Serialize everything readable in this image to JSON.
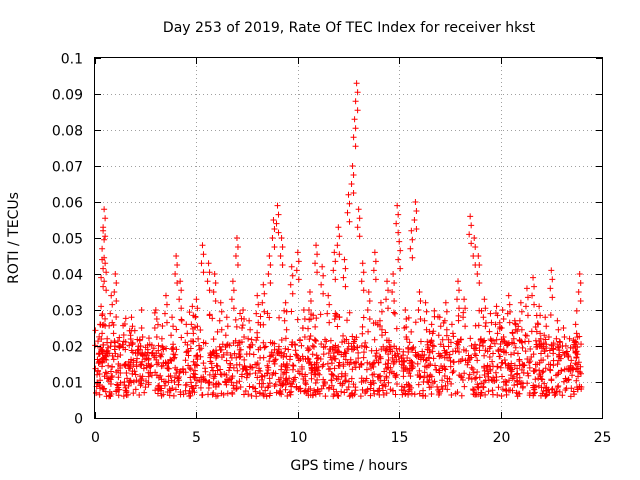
{
  "chart_data": {
    "type": "scatter",
    "title": "Day 253 of 2019, Rate Of TEC Index for receiver hkst",
    "xlabel": "GPS time / hours",
    "ylabel": "ROTI / TECUs",
    "xlim": [
      0,
      25
    ],
    "ylim": [
      0,
      0.1
    ],
    "x_ticks": [
      0,
      5,
      10,
      15,
      20,
      25
    ],
    "x_tick_labels": [
      "0",
      "5",
      "10",
      "15",
      "20",
      "25"
    ],
    "y_ticks": [
      0,
      0.01,
      0.02,
      0.03,
      0.04,
      0.05,
      0.06,
      0.07,
      0.08,
      0.09,
      0.1
    ],
    "y_tick_labels": [
      "0",
      "0.01",
      "0.02",
      "0.03",
      "0.04",
      "0.05",
      "0.06",
      "0.07",
      "0.08",
      "0.09",
      "0.1"
    ],
    "grid": true,
    "marker": "+",
    "marker_color": "#ff0000",
    "series": [
      {
        "name": "ROTI",
        "points": [
          [
            0.1,
            0.012
          ],
          [
            0.2,
            0.018
          ],
          [
            0.3,
            0.031
          ],
          [
            0.35,
            0.044
          ],
          [
            0.4,
            0.052
          ],
          [
            0.45,
            0.058
          ],
          [
            0.5,
            0.043
          ],
          [
            0.6,
            0.022
          ],
          [
            0.8,
            0.034
          ],
          [
            1.0,
            0.04
          ],
          [
            1.2,
            0.02
          ],
          [
            1.5,
            0.015
          ],
          [
            1.8,
            0.028
          ],
          [
            2.0,
            0.018
          ],
          [
            2.3,
            0.025
          ],
          [
            2.6,
            0.019
          ],
          [
            3.0,
            0.03
          ],
          [
            3.3,
            0.022
          ],
          [
            3.5,
            0.034
          ],
          [
            3.8,
            0.028
          ],
          [
            4.0,
            0.045
          ],
          [
            4.2,
            0.038
          ],
          [
            4.5,
            0.026
          ],
          [
            4.8,
            0.031
          ],
          [
            5.0,
            0.033
          ],
          [
            5.3,
            0.048
          ],
          [
            5.6,
            0.043
          ],
          [
            5.9,
            0.04
          ],
          [
            6.2,
            0.032
          ],
          [
            6.5,
            0.028
          ],
          [
            6.8,
            0.038
          ],
          [
            7.0,
            0.05
          ],
          [
            7.3,
            0.03
          ],
          [
            7.6,
            0.027
          ],
          [
            8.0,
            0.034
          ],
          [
            8.3,
            0.037
          ],
          [
            8.6,
            0.045
          ],
          [
            8.8,
            0.055
          ],
          [
            9.0,
            0.059
          ],
          [
            9.2,
            0.05
          ],
          [
            9.4,
            0.032
          ],
          [
            9.7,
            0.042
          ],
          [
            10.0,
            0.046
          ],
          [
            10.3,
            0.03
          ],
          [
            10.6,
            0.035
          ],
          [
            10.9,
            0.048
          ],
          [
            11.2,
            0.042
          ],
          [
            11.5,
            0.034
          ],
          [
            11.8,
            0.046
          ],
          [
            12.0,
            0.053
          ],
          [
            12.3,
            0.044
          ],
          [
            12.5,
            0.062
          ],
          [
            12.7,
            0.07
          ],
          [
            12.8,
            0.083
          ],
          [
            12.9,
            0.093
          ],
          [
            13.0,
            0.058
          ],
          [
            13.2,
            0.043
          ],
          [
            13.5,
            0.035
          ],
          [
            13.8,
            0.046
          ],
          [
            14.1,
            0.032
          ],
          [
            14.4,
            0.038
          ],
          [
            14.7,
            0.04
          ],
          [
            14.9,
            0.059
          ],
          [
            15.0,
            0.049
          ],
          [
            15.3,
            0.03
          ],
          [
            15.6,
            0.052
          ],
          [
            15.8,
            0.06
          ],
          [
            16.0,
            0.035
          ],
          [
            16.3,
            0.032
          ],
          [
            16.6,
            0.026
          ],
          [
            17.0,
            0.028
          ],
          [
            17.3,
            0.032
          ],
          [
            17.6,
            0.026
          ],
          [
            17.9,
            0.038
          ],
          [
            18.2,
            0.033
          ],
          [
            18.5,
            0.056
          ],
          [
            18.7,
            0.05
          ],
          [
            18.9,
            0.045
          ],
          [
            19.2,
            0.033
          ],
          [
            19.5,
            0.029
          ],
          [
            19.8,
            0.031
          ],
          [
            20.1,
            0.03
          ],
          [
            20.4,
            0.034
          ],
          [
            20.7,
            0.027
          ],
          [
            21.0,
            0.032
          ],
          [
            21.3,
            0.036
          ],
          [
            21.6,
            0.039
          ],
          [
            21.9,
            0.031
          ],
          [
            22.2,
            0.028
          ],
          [
            22.5,
            0.041
          ],
          [
            22.8,
            0.027
          ],
          [
            23.1,
            0.025
          ],
          [
            23.4,
            0.022
          ],
          [
            23.7,
            0.026
          ],
          [
            23.9,
            0.04
          ]
        ]
      }
    ]
  }
}
